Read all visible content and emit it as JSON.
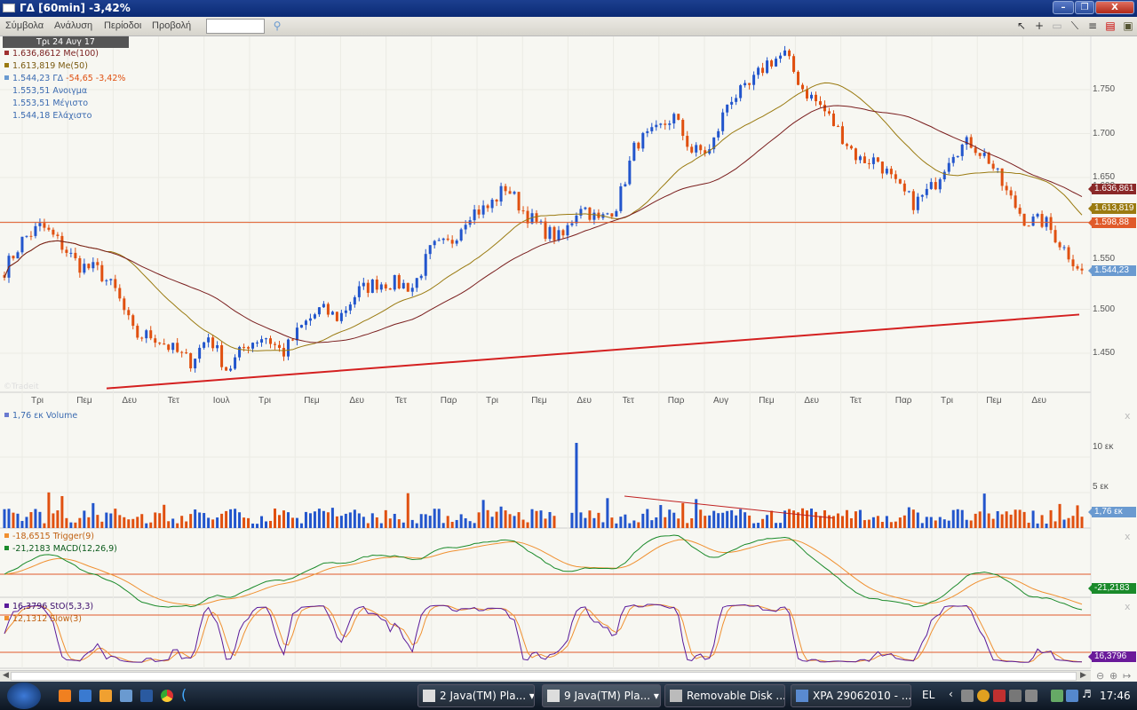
{
  "window": {
    "title": "ΓΔ [60min] -3,42%",
    "minimize": "–",
    "restore": "❐",
    "close": "X"
  },
  "menu": [
    "Σύμβολα",
    "Ανάλυση",
    "Περίοδοι",
    "Προβολή"
  ],
  "search": {
    "value": "",
    "placeholder": ""
  },
  "tools": [
    "pointer-icon",
    "crosshair-icon",
    "rectangle-icon",
    "line-icon",
    "horizontal-lines-icon",
    "chart-icon",
    "save-icon"
  ],
  "legend": {
    "date": "Τρι 24 Αυγ 17",
    "ma100": "1.636,8612 Me(100)",
    "ma50": "1.613,819 Me(50)",
    "price": "1.544,23 ΓΔ",
    "change": "-54,65 -3,42%",
    "open": "1.553,51 Ανοιγμα",
    "high": "1.553,51 Μέγιστο",
    "low": "1.544,18 Ελάχιστο"
  },
  "colors": {
    "up": "#2255cc",
    "down": "#e05010",
    "ma100": "#7a1e1e",
    "ma50": "#9a7a10",
    "trend": "#d42020",
    "hline": "#e05a2a",
    "macd": "#1a8a2a",
    "trigger": "#f09030",
    "sto": "#5a1a9a",
    "slow": "#f09030"
  },
  "chart_data": [
    {
      "type": "candlestick",
      "title": "ΓΔ [60min]",
      "y_ticks": [
        "1.750",
        "1.700",
        "1.650",
        "1.600",
        "1.550",
        "1.500",
        "1.450"
      ],
      "ylim": [
        1410,
        1800
      ],
      "x_ticks": [
        "Τρι",
        "Πεμ",
        "Δευ",
        "Τετ",
        "Ιουλ",
        "Τρι",
        "Πεμ",
        "Δευ",
        "Τετ",
        "Παρ",
        "Τρι",
        "Πεμ",
        "Δευ",
        "Τετ",
        "Παρ",
        "Αυγ",
        "Πεμ",
        "Δευ",
        "Τετ",
        "Παρ",
        "Τρι",
        "Πεμ",
        "Δευ"
      ],
      "close_path": [
        1545,
        1580,
        1595,
        1575,
        1550,
        1545,
        1520,
        1470,
        1470,
        1455,
        1440,
        1470,
        1430,
        1460,
        1470,
        1450,
        1480,
        1500,
        1490,
        1520,
        1530,
        1530,
        1525,
        1570,
        1575,
        1610,
        1615,
        1640,
        1610,
        1590,
        1580,
        1620,
        1600,
        1620,
        1690,
        1700,
        1720,
        1680,
        1680,
        1740,
        1750,
        1780,
        1790,
        1750,
        1730,
        1700,
        1670,
        1670,
        1640,
        1620,
        1640,
        1680,
        1690,
        1670,
        1630,
        1600,
        1600,
        1570,
        1544.23
      ],
      "last": {
        "price": "1.544,23",
        "ma100": "1.636,861",
        "ma50": "1.613,819",
        "hline": "1.598,88"
      },
      "hline": 1598.88,
      "trendline": [
        1410,
        1494
      ],
      "watermark": "©Tradeit"
    },
    {
      "type": "bar",
      "name": "Volume",
      "legend": "1,76 εκ Volume",
      "y_ticks": [
        "10 εκ",
        "5 εκ"
      ],
      "last": "1,76 εκ",
      "ylim": [
        0,
        13
      ],
      "spike": 12
    },
    {
      "type": "line",
      "series": [
        {
          "name": "Trigger(9)",
          "legend": "-18,6515 Trigger(9)"
        },
        {
          "name": "MACD(12,26,9)",
          "legend": "-21,2183 MACD(12,26,9)"
        }
      ],
      "last": "-21,2183"
    },
    {
      "type": "line",
      "series": [
        {
          "name": "StO(5,3,3)",
          "legend": "16,3796 StO(5,3,3)"
        },
        {
          "name": "Slow(3)",
          "legend": "12,1312 Slow(3)"
        }
      ],
      "last": "16,3796",
      "levels": [
        80,
        20
      ]
    }
  ],
  "taskbar": {
    "tasks": [
      "2 Java(TM) Pla...",
      "9 Java(TM) Pla...",
      "Removable Disk ...",
      "XPA 29062010 - ..."
    ],
    "lang": "EL",
    "time": "17:46"
  }
}
